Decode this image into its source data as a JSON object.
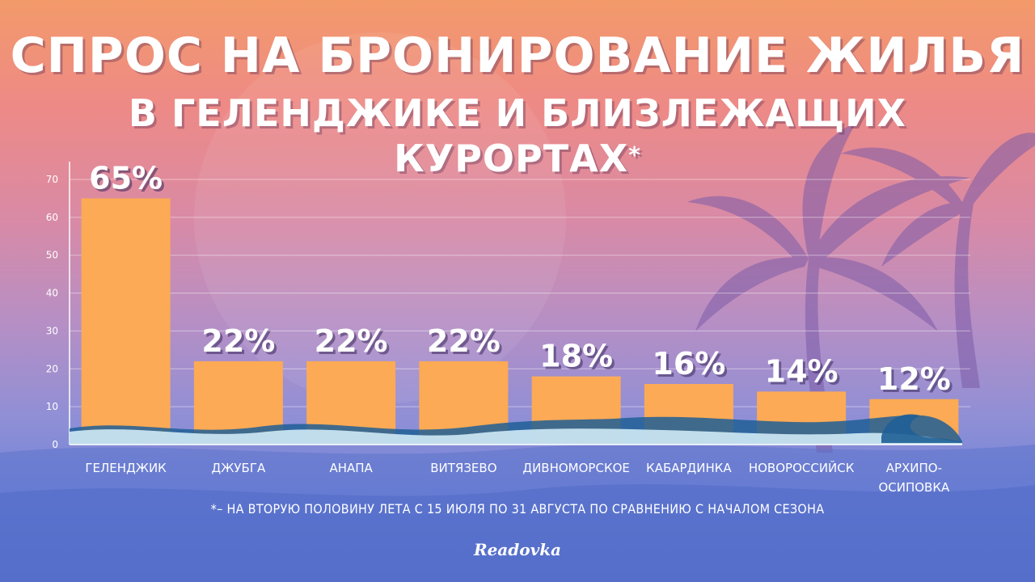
{
  "header": {
    "title_line1": "СПРОС НА БРОНИРОВАНИЕ ЖИЛЬЯ",
    "title_line2": "В ГЕЛЕНДЖИКЕ И БЛИЗЛЕЖАЩИХ КУРОРТАХ",
    "asterisk": "*"
  },
  "footnote": "*– НА ВТОРУЮ ПОЛОВИНУ ЛЕТА С 15 ИЮЛЯ ПО 31 АВГУСТА ПО СРАВНЕНИЮ С НАЧАЛОМ СЕЗОНА",
  "logo": "Readovka",
  "colors": {
    "bar": "#fcaa55",
    "label": "#ffffff",
    "axis": "#ffffff",
    "wave_light": "#cfeaf5",
    "wave_dark": "#1f5f96"
  },
  "chart_data": {
    "type": "bar",
    "categories": [
      "ГЕЛЕНДЖИК",
      "ДЖУБГА",
      "АНАПА",
      "ВИТЯЗЕВО",
      "ДИВНОМОРСКОЕ",
      "КАБАРДИНКА",
      "НОВОРОССИЙСК",
      "АРХИПО-ОСИПОВКА"
    ],
    "category_lines": [
      [
        "ГЕЛЕНДЖИК"
      ],
      [
        "ДЖУБГА"
      ],
      [
        "АНАПА"
      ],
      [
        "ВИТЯЗЕВО"
      ],
      [
        "ДИВНОМОРСКОЕ"
      ],
      [
        "КАБАРДИНКА"
      ],
      [
        "НОВОРОССИЙСК"
      ],
      [
        "АРХИПО-",
        "ОСИПОВКА"
      ]
    ],
    "values": [
      65,
      22,
      22,
      22,
      18,
      16,
      14,
      12
    ],
    "data_labels": [
      "65%",
      "22%",
      "22%",
      "22%",
      "18%",
      "16%",
      "14%",
      "12%"
    ],
    "yticks": [
      0,
      10,
      20,
      30,
      40,
      50,
      60,
      70
    ],
    "ylim": [
      0,
      70
    ],
    "grid": true,
    "xlabel": "",
    "ylabel": ""
  }
}
